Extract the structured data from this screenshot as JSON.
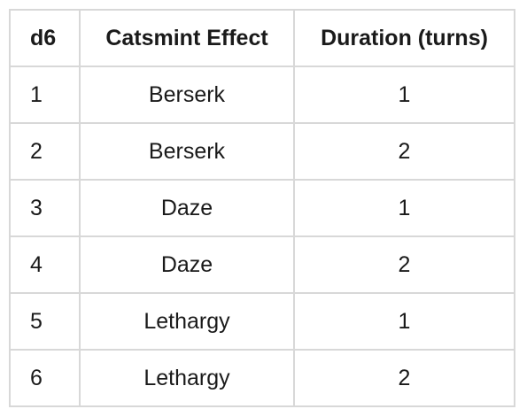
{
  "table": {
    "headers": [
      "d6",
      "Catsmint Effect",
      "Duration (turns)"
    ],
    "rows": [
      [
        "1",
        "Berserk",
        "1"
      ],
      [
        "2",
        "Berserk",
        "2"
      ],
      [
        "3",
        "Daze",
        "1"
      ],
      [
        "4",
        "Daze",
        "2"
      ],
      [
        "5",
        "Lethargy",
        "1"
      ],
      [
        "6",
        "Lethargy",
        "2"
      ]
    ]
  },
  "colors": {
    "border": "#d8d8d8",
    "text": "#1a1a1a",
    "background": "#ffffff"
  }
}
